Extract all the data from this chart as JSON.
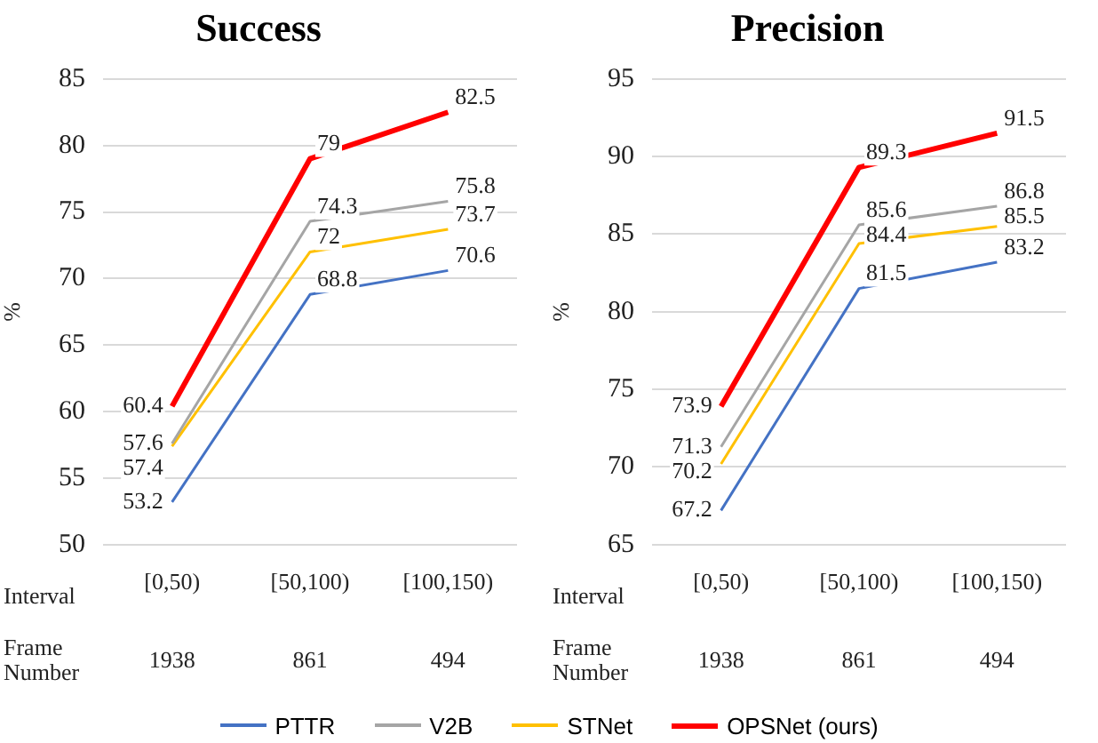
{
  "chart_data": [
    {
      "type": "line",
      "title": "Success",
      "ylabel": "%",
      "categories": [
        "[0,50)",
        "[50,100)",
        "[100,150)"
      ],
      "ylim": [
        50,
        85
      ],
      "yticks": [
        50,
        55,
        60,
        65,
        70,
        75,
        80,
        85
      ],
      "grid": "y",
      "marker": "none",
      "data_labels": true,
      "legend": "bottom",
      "annotations": [
        "Interval",
        "Frame Number",
        "1938",
        "861",
        "494"
      ],
      "series": [
        {
          "name": "PTTR",
          "color": "#4472c4",
          "values": [
            53.2,
            68.8,
            70.6
          ]
        },
        {
          "name": "V2B",
          "color": "#a5a5a5",
          "values": [
            57.6,
            74.3,
            75.8
          ]
        },
        {
          "name": "STNet",
          "color": "#ffc000",
          "values": [
            57.4,
            72,
            73.7
          ]
        },
        {
          "name": "OPSNet (ours)",
          "color": "#ff0000",
          "values": [
            60.4,
            79,
            82.5
          ]
        }
      ]
    },
    {
      "type": "line",
      "title": "Precision",
      "ylabel": "%",
      "categories": [
        "[0,50)",
        "[50,100)",
        "[100,150)"
      ],
      "ylim": [
        65,
        95
      ],
      "yticks": [
        65,
        70,
        75,
        80,
        85,
        90,
        95
      ],
      "grid": "y",
      "marker": "none",
      "data_labels": true,
      "annotations": [
        "Interval",
        "Frame Number",
        "1938",
        "861",
        "494"
      ],
      "series": [
        {
          "color": "#4472c4",
          "values": [
            67.2,
            81.5,
            83.2
          ]
        },
        {
          "color": "#a5a5a5",
          "values": [
            71.3,
            85.6,
            86.8
          ]
        },
        {
          "color": "#ffc000",
          "values": [
            70.2,
            84.4,
            85.5
          ]
        },
        {
          "color": "#ff0000",
          "values": [
            73.9,
            89.3,
            91.5
          ]
        }
      ]
    }
  ]
}
